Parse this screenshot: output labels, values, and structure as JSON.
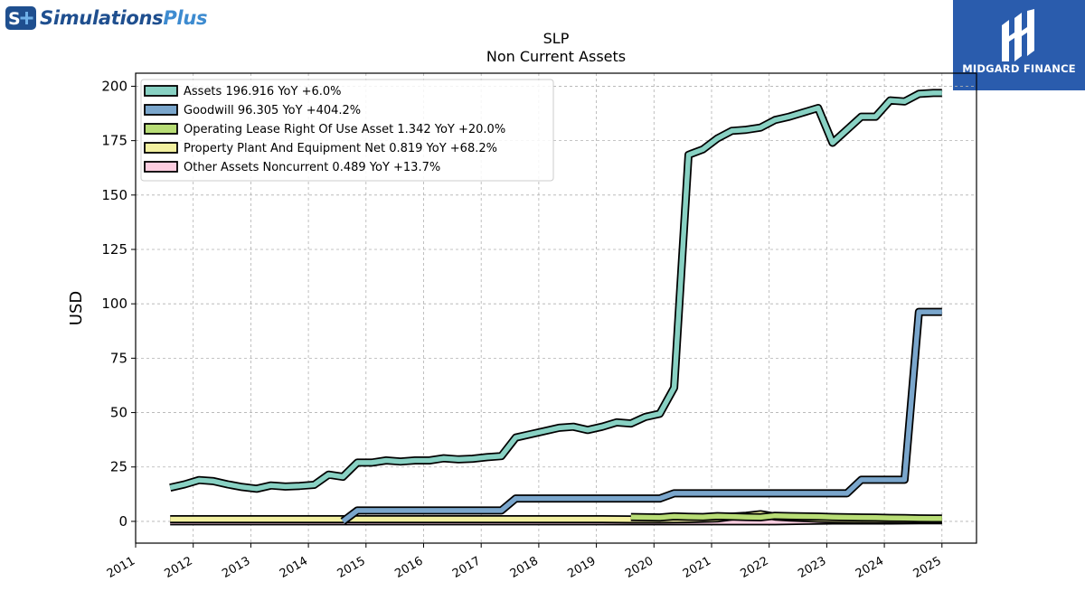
{
  "branding": {
    "company": "Simulations",
    "company_suffix": "Plus",
    "logo_icon": "s-plus-logo-icon",
    "partner": "MIDGARD FINANCE",
    "partner_icon": "midgard-logo-icon",
    "partner_bg": "#2a5cad"
  },
  "chart_data": {
    "type": "line",
    "title": "SLP",
    "subtitle": "Non Current  Assets",
    "ylabel": "USD",
    "xlabel": "",
    "xlim": [
      2011.0,
      2025.6
    ],
    "ylim": [
      -10,
      206
    ],
    "yticks": [
      0,
      25,
      50,
      75,
      100,
      125,
      150,
      175,
      200
    ],
    "xticks": [
      "2011",
      "2012",
      "2013",
      "2014",
      "2015",
      "2016",
      "2017",
      "2018",
      "2019",
      "2020",
      "2021",
      "2022",
      "2023",
      "2024",
      "2025"
    ],
    "grid": true,
    "legend_position": "top-left",
    "series": [
      {
        "name": "Assets",
        "legend": "Assets  196.916 YoY +6.0%",
        "color": "#88d1c3",
        "x": [
          2011.6,
          2011.85,
          2012.1,
          2012.35,
          2012.6,
          2012.85,
          2013.1,
          2013.35,
          2013.6,
          2013.85,
          2014.1,
          2014.35,
          2014.6,
          2014.85,
          2015.1,
          2015.35,
          2015.6,
          2015.85,
          2016.1,
          2016.35,
          2016.6,
          2016.85,
          2017.1,
          2017.35,
          2017.6,
          2017.85,
          2018.1,
          2018.35,
          2018.6,
          2018.85,
          2019.1,
          2019.35,
          2019.6,
          2019.85,
          2020.1,
          2020.35,
          2020.6,
          2020.85,
          2021.1,
          2021.35,
          2021.6,
          2021.85,
          2022.1,
          2022.35,
          2022.6,
          2022.85,
          2023.1,
          2023.35,
          2023.6,
          2023.85,
          2024.1,
          2024.35,
          2024.6,
          2024.85,
          2025.0
        ],
        "y": [
          15.5,
          17.0,
          19.0,
          18.5,
          17.0,
          15.8,
          15.0,
          16.5,
          16.0,
          16.3,
          16.8,
          21.5,
          20.5,
          27.0,
          27.0,
          28.0,
          27.5,
          28.0,
          28.0,
          29.0,
          28.5,
          28.8,
          29.5,
          30.0,
          38.5,
          40.0,
          41.5,
          43.0,
          43.5,
          42.0,
          43.5,
          45.5,
          45.0,
          48.0,
          49.5,
          61.5,
          168.5,
          171.0,
          176.0,
          179.5,
          180.0,
          181.0,
          184.5,
          186.0,
          188.0,
          190.0,
          174.0,
          180.0,
          186.0,
          186.0,
          193.5,
          193.0,
          196.5,
          196.9,
          196.9
        ]
      },
      {
        "name": "Goodwill",
        "legend": "Goodwill  96.305 YoY +404.2%",
        "color": "#7aa6cc",
        "x": [
          2014.6,
          2014.85,
          2015.1,
          2015.35,
          2015.6,
          2015.85,
          2016.1,
          2016.35,
          2016.6,
          2016.85,
          2017.1,
          2017.35,
          2017.6,
          2017.85,
          2018.1,
          2018.35,
          2018.6,
          2018.85,
          2019.1,
          2019.35,
          2019.6,
          2019.85,
          2020.1,
          2020.35,
          2020.6,
          2020.85,
          2021.1,
          2021.35,
          2021.6,
          2021.85,
          2022.1,
          2022.35,
          2022.6,
          2022.85,
          2023.1,
          2023.35,
          2023.6,
          2023.85,
          2024.1,
          2024.35,
          2024.6,
          2024.85,
          2025.0
        ],
        "y": [
          0.0,
          5.0,
          5.0,
          5.0,
          5.0,
          5.0,
          5.0,
          5.0,
          5.0,
          5.0,
          5.0,
          5.0,
          10.5,
          10.5,
          10.5,
          10.5,
          10.5,
          10.5,
          10.5,
          10.5,
          10.5,
          10.5,
          10.5,
          12.9,
          12.9,
          12.9,
          12.9,
          12.9,
          12.9,
          12.9,
          12.9,
          12.9,
          12.9,
          12.9,
          12.9,
          12.9,
          19.1,
          19.1,
          19.1,
          19.1,
          96.3,
          96.3,
          96.3
        ]
      },
      {
        "name": "Operating Lease Right Of Use Asset",
        "legend": "Operating Lease Right Of Use Asset  1.342 YoY +20.0%",
        "color": "#b8dd76",
        "x": [
          2019.6,
          2019.85,
          2020.1,
          2020.35,
          2020.6,
          2020.85,
          2021.1,
          2021.35,
          2021.6,
          2021.85,
          2022.1,
          2022.35,
          2022.6,
          2022.85,
          2023.1,
          2023.35,
          2023.6,
          2023.85,
          2024.1,
          2024.35,
          2024.6,
          2024.85,
          2025.0
        ],
        "y": [
          2.0,
          1.9,
          1.8,
          2.3,
          2.1,
          2.0,
          2.4,
          2.2,
          2.0,
          1.9,
          2.6,
          2.4,
          2.3,
          2.2,
          2.0,
          1.9,
          1.8,
          1.7,
          1.6,
          1.5,
          1.4,
          1.3,
          1.342
        ]
      },
      {
        "name": "Property Plant And Equipment Net",
        "legend": "Property Plant And Equipment Net  0.819 YoY +68.2%",
        "color": "#f2f0a0",
        "x": [
          2011.6,
          2012.1,
          2012.6,
          2013.1,
          2013.6,
          2014.1,
          2014.6,
          2015.1,
          2015.6,
          2016.1,
          2016.6,
          2017.1,
          2017.6,
          2018.1,
          2018.6,
          2019.1,
          2019.6,
          2020.1,
          2020.6,
          2021.1,
          2021.35,
          2021.6,
          2021.85,
          2022.1,
          2022.35,
          2022.6,
          2022.85,
          2023.1,
          2023.6,
          2024.1,
          2024.6,
          2025.0
        ],
        "y": [
          1.0,
          1.0,
          1.0,
          1.0,
          1.0,
          1.0,
          1.0,
          1.0,
          1.0,
          1.0,
          1.0,
          1.0,
          1.0,
          1.0,
          1.0,
          1.0,
          0.9,
          0.9,
          1.0,
          1.4,
          2.2,
          2.6,
          3.3,
          2.2,
          1.8,
          1.5,
          1.2,
          1.0,
          0.9,
          0.8,
          0.7,
          0.819
        ]
      },
      {
        "name": "Other Assets Noncurrent",
        "legend": "Other Assets Noncurrent  0.489 YoY +13.7%",
        "color": "#fccde0",
        "x": [
          2011.6,
          2012.1,
          2012.6,
          2013.1,
          2013.6,
          2014.1,
          2014.6,
          2015.1,
          2015.6,
          2016.1,
          2016.6,
          2017.1,
          2017.6,
          2018.1,
          2018.6,
          2019.1,
          2019.6,
          2020.1,
          2020.6,
          2021.1,
          2021.6,
          2022.1,
          2022.6,
          2023.1,
          2023.6,
          2024.1,
          2024.6,
          2025.0
        ],
        "y": [
          0.0,
          0.0,
          0.0,
          0.0,
          0.0,
          0.0,
          0.0,
          0.0,
          0.0,
          0.0,
          0.0,
          0.0,
          0.0,
          0.0,
          0.0,
          0.0,
          0.0,
          0.0,
          0.0,
          0.0,
          0.0,
          0.0,
          0.2,
          0.4,
          0.4,
          0.4,
          0.45,
          0.489
        ]
      }
    ]
  }
}
